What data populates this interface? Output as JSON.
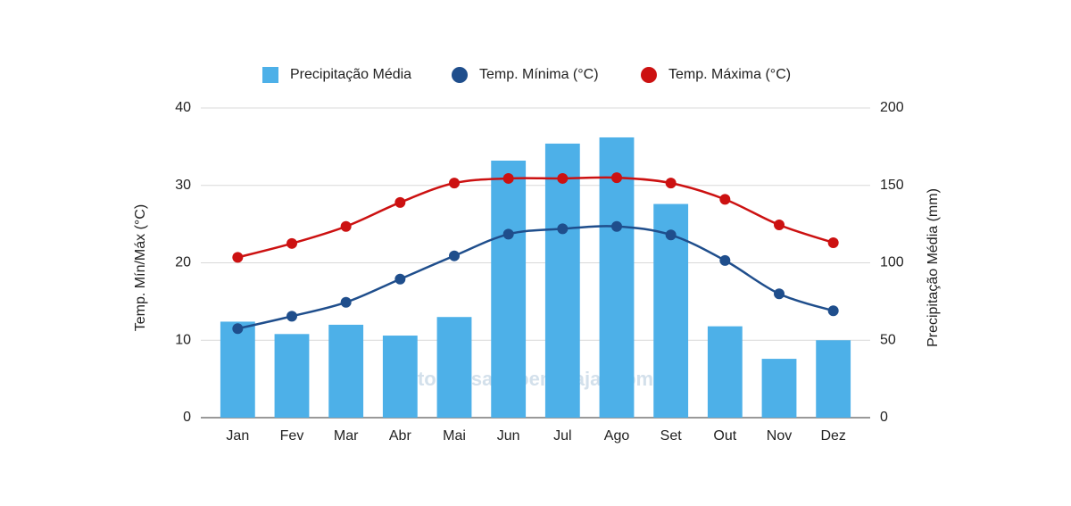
{
  "chart_data": {
    "type": "combo",
    "categories": [
      "Jan",
      "Fev",
      "Mar",
      "Abr",
      "Mai",
      "Jun",
      "Jul",
      "Ago",
      "Set",
      "Out",
      "Nov",
      "Dez"
    ],
    "series": [
      {
        "name": "Precipitação Média",
        "type": "bar",
        "axis": "y2",
        "color": "#4db0e8",
        "values": [
          62,
          54,
          60,
          53,
          65,
          166,
          177,
          181,
          138,
          59,
          38,
          50
        ]
      },
      {
        "name": "Temp. Mínima (°C)",
        "type": "line",
        "axis": "y",
        "color": "#1f4e8c",
        "values": [
          11.5,
          13.1,
          14.9,
          17.9,
          20.9,
          23.7,
          24.4,
          24.7,
          23.6,
          20.3,
          16.0,
          13.8
        ]
      },
      {
        "name": "Temp. Máxima (°C)",
        "type": "line",
        "axis": "y",
        "color": "#cc1111",
        "values": [
          20.7,
          22.5,
          24.7,
          27.8,
          30.3,
          30.9,
          30.9,
          31.0,
          30.3,
          28.2,
          24.9,
          22.6
        ]
      }
    ],
    "ylabel": "Temp. Mín/Máx (°C)",
    "y2label": "Precipitação Média (mm)",
    "ylim": [
      0,
      40
    ],
    "yticks": [
      0,
      10,
      20,
      30,
      40
    ],
    "y2lim": [
      0,
      200
    ],
    "y2ticks": [
      0,
      50,
      100,
      150,
      200
    ],
    "grid": true,
    "legend": "top",
    "watermark": "topensandoemviajar.com"
  }
}
